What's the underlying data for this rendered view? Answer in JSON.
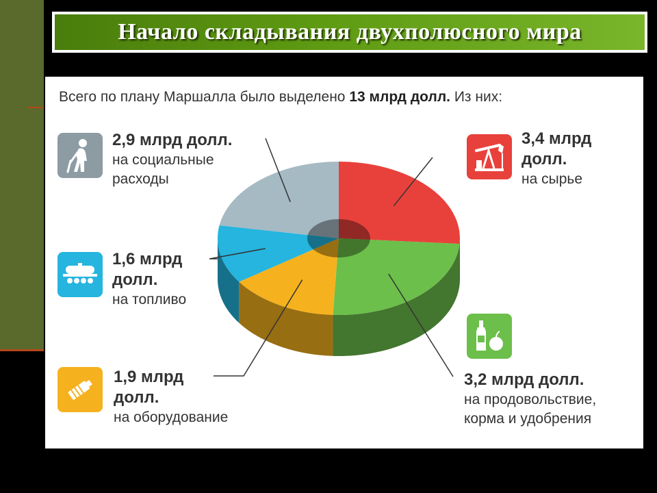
{
  "slide": {
    "title": "Начало складывания двухполюсного мира"
  },
  "colors": {
    "side_panel": "#5a6a2c",
    "title_bar": "#5e9a12",
    "raw_materials": "#e8413c",
    "food": "#6cbf4a",
    "equipment": "#f5b21e",
    "fuel": "#25b5df",
    "social": "#a6bac4"
  },
  "chart_data": {
    "type": "pie",
    "title": "Всего по плану Маршалла было выделено 13 млрд долл. Из них:",
    "title_prefix": "Всего по плану Маршалла было выделено ",
    "title_bold": "13 млрд долл.",
    "title_suffix": " Из них:",
    "total": 13,
    "unit": "млрд долл.",
    "slices": [
      {
        "key": "raw",
        "amount": "3,4 млрд",
        "amount2": "долл.",
        "desc": "на сырье",
        "desc2": "",
        "value": 3.4,
        "color": "#e8413c",
        "icon": "oil-pump-icon"
      },
      {
        "key": "food",
        "amount": "3,2 млрд долл.",
        "amount2": "",
        "desc": "на продовольствие,",
        "desc2": "корма и удобрения",
        "value": 3.2,
        "color": "#6cbf4a",
        "icon": "bottle-apple-icon"
      },
      {
        "key": "equipment",
        "amount": "1,9 млрд",
        "amount2": "долл.",
        "desc": "на оборудование",
        "desc2": "",
        "value": 1.9,
        "color": "#f5b21e",
        "icon": "machine-part-icon"
      },
      {
        "key": "fuel",
        "amount": "1,6 млрд",
        "amount2": "долл.",
        "desc": "на топливо",
        "desc2": "",
        "value": 1.6,
        "color": "#25b5df",
        "icon": "tank-car-icon"
      },
      {
        "key": "social",
        "amount": "2,9 млрд долл.",
        "amount2": "",
        "desc": "на социальные",
        "desc2": "расходы",
        "value": 2.9,
        "color": "#a6bac4",
        "icon": "elderly-person-icon"
      }
    ]
  }
}
